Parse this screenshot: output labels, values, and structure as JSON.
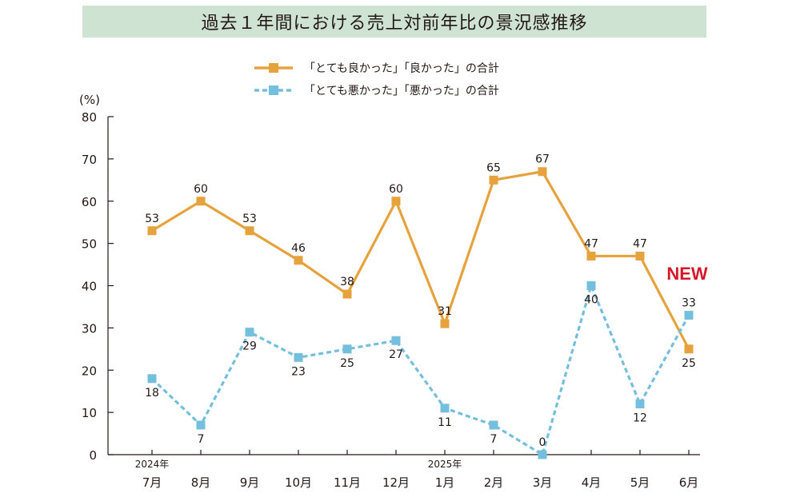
{
  "chart_data": {
    "type": "line",
    "title": "過去１年間における売上対前年比の景況感推移",
    "y_unit": "(%)",
    "ylim": [
      0,
      80
    ],
    "y_ticks": [
      0,
      10,
      20,
      30,
      40,
      50,
      60,
      70,
      80
    ],
    "categories": [
      "7月",
      "8月",
      "9月",
      "10月",
      "11月",
      "12月",
      "1月",
      "2月",
      "3月",
      "4月",
      "5月",
      "6月"
    ],
    "year_labels": [
      {
        "index": 0,
        "label": "2024年"
      },
      {
        "index": 6,
        "label": "2025年"
      }
    ],
    "series": [
      {
        "name": "「とても良かった」「良かった」の合計",
        "color": "#e6a23c",
        "style": "solid",
        "values": [
          53,
          60,
          53,
          46,
          38,
          60,
          31,
          65,
          67,
          47,
          47,
          25
        ]
      },
      {
        "name": "「とても悪かった」「悪かった」の合計",
        "color": "#74bfdd",
        "style": "dashed",
        "values": [
          18,
          7,
          29,
          23,
          25,
          27,
          11,
          7,
          0,
          40,
          12,
          33
        ]
      }
    ],
    "annotation": "NEW",
    "annotation_color": "#d7182a",
    "grid": false,
    "legend_position": "top-center"
  }
}
